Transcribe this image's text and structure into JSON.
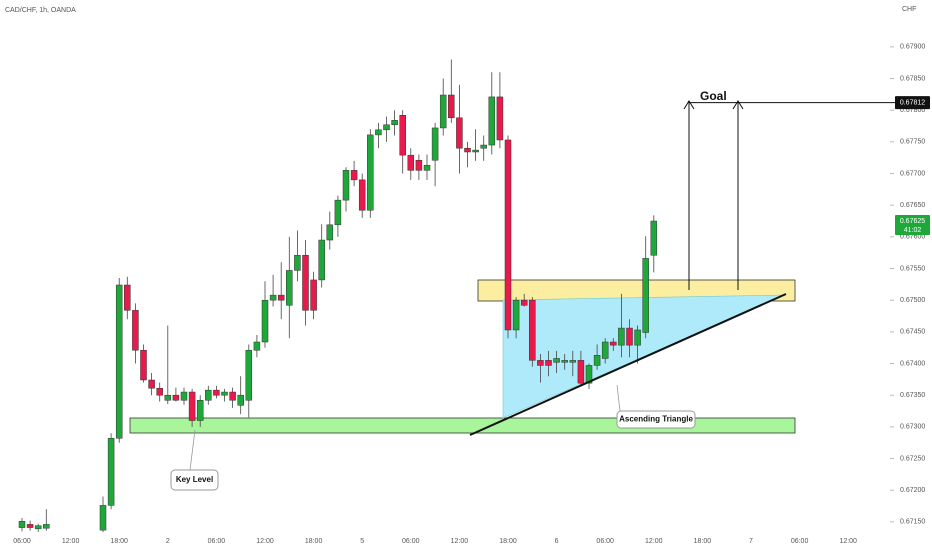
{
  "chart_data": {
    "type": "candlestick",
    "title": "CAD/CHF, 1h, OANDA",
    "currency": "CHF",
    "up_color": "#1fa83a",
    "down_color": "#e8194b",
    "categories": [
      "06:00",
      null,
      null,
      null,
      null,
      null,
      "12:00",
      null,
      null,
      null,
      null,
      null,
      "18:00",
      null,
      null,
      null,
      null,
      null,
      "2",
      null,
      null,
      null,
      null,
      null,
      "06:00",
      null,
      null,
      null,
      null,
      null,
      "12:00",
      null,
      null,
      null,
      null,
      null,
      "18:00",
      null,
      null,
      null,
      null,
      null,
      "5",
      null,
      null,
      null,
      null,
      null,
      "06:00",
      null,
      null,
      null,
      null,
      null,
      "12:00",
      null,
      null,
      null,
      null,
      null,
      "18:00",
      null,
      null,
      null,
      null,
      null,
      "6",
      null,
      null,
      null,
      null,
      null,
      "06:00",
      null,
      null,
      null,
      null,
      null,
      "12:00",
      null,
      null,
      null,
      null,
      null,
      "18:00",
      null,
      null,
      null,
      null,
      null,
      "7",
      null,
      null,
      null,
      null,
      null,
      "06:00",
      null,
      null,
      null,
      null,
      null,
      "12:00",
      null,
      null,
      null,
      null,
      null
    ],
    "open": [
      0.67141,
      0.67146,
      0.67139,
      0.6714,
      null,
      null,
      null,
      null,
      null,
      null,
      0.67137,
      0.67176,
      0.67282,
      0.67524,
      0.67484,
      0.67421,
      0.67374,
      0.67361,
      0.67342,
      0.6735,
      0.67342,
      0.67355,
      0.6731,
      0.67342,
      0.67358,
      0.6735,
      0.67355,
      0.67334,
      0.67342,
      0.67421,
      0.67434,
      0.675,
      0.67508,
      0.67492,
      0.67547,
      0.67571,
      0.67532,
      0.67532,
      0.67595,
      0.67619,
      0.67658,
      0.67705,
      0.6769,
      0.67642,
      0.67761,
      0.67769,
      0.67777,
      0.67792,
      0.67729,
      0.67721,
      0.67705,
      0.67721,
      0.67772,
      0.67824,
      0.67788,
      0.6774,
      0.67734,
      0.6774,
      0.67745,
      0.67821,
      0.67753,
      0.67453,
      0.675,
      0.675,
      0.67405,
      0.67405,
      0.67402,
      0.67402,
      0.67402,
      0.67405,
      0.67369,
      0.67397,
      0.67408,
      0.67434,
      0.67429,
      0.67456,
      0.67429,
      0.67449,
      0.67571,
      null,
      null,
      null,
      null,
      null,
      null,
      null,
      null,
      null,
      null,
      null,
      null,
      null,
      null,
      null,
      null,
      null,
      null,
      null,
      null,
      null,
      null,
      null,
      null,
      null,
      null,
      null,
      null,
      null
    ],
    "high": [
      0.67156,
      0.67152,
      0.67147,
      0.6717,
      null,
      null,
      null,
      null,
      null,
      null,
      0.6719,
      0.6729,
      0.67535,
      0.67537,
      0.67495,
      0.6743,
      0.67385,
      0.6737,
      0.6746,
      0.67362,
      0.67362,
      0.6736,
      0.6735,
      0.67365,
      0.67365,
      0.6736,
      0.67362,
      0.6738,
      0.6743,
      0.67445,
      0.6753,
      0.6754,
      0.6756,
      0.676,
      0.6761,
      0.67595,
      0.67545,
      0.6762,
      0.6764,
      0.67665,
      0.6771,
      0.6772,
      0.677,
      0.6777,
      0.6778,
      0.6779,
      0.678,
      0.678,
      0.6774,
      0.6773,
      0.6773,
      0.6778,
      0.6785,
      0.6788,
      0.6784,
      0.6775,
      0.6777,
      0.6776,
      0.6786,
      0.6786,
      0.6776,
      0.67505,
      0.6751,
      0.67505,
      0.67415,
      0.6742,
      0.6742,
      0.67415,
      0.6742,
      0.6742,
      0.674,
      0.6743,
      0.6744,
      0.6744,
      0.6751,
      0.6747,
      0.6746,
      0.67601,
      0.67634,
      null,
      null,
      null,
      null,
      null,
      null,
      null,
      null,
      null,
      null,
      null,
      null,
      null,
      null,
      null,
      null,
      null,
      null,
      null,
      null,
      null,
      null,
      null,
      null,
      null,
      null,
      null,
      null,
      null
    ],
    "low": [
      0.67135,
      0.67136,
      0.67134,
      0.67136,
      null,
      null,
      null,
      null,
      null,
      null,
      0.67134,
      0.6717,
      0.67275,
      0.6747,
      0.674,
      0.6737,
      0.6735,
      0.6734,
      0.67336,
      0.6734,
      0.67335,
      0.673,
      0.673,
      0.67335,
      0.67345,
      0.6734,
      0.6733,
      0.6732,
      0.67315,
      0.6741,
      0.67425,
      0.6749,
      0.6747,
      0.6744,
      0.6753,
      0.6746,
      0.6747,
      0.6752,
      0.6758,
      0.676,
      0.6764,
      0.6768,
      0.6763,
      0.6763,
      0.6774,
      0.6775,
      0.6776,
      0.677,
      0.6769,
      0.6769,
      0.6769,
      0.6768,
      0.6776,
      0.6778,
      0.677,
      0.6771,
      0.6772,
      0.6772,
      0.6773,
      0.6774,
      0.6744,
      0.6744,
      0.6749,
      0.67395,
      0.6737,
      0.6738,
      0.67385,
      0.6739,
      0.6738,
      0.67365,
      0.6736,
      0.6739,
      0.674,
      0.6742,
      0.6741,
      0.6741,
      0.674,
      0.6744,
      0.67544,
      null,
      null,
      null,
      null,
      null,
      null,
      null,
      null,
      null,
      null,
      null,
      null,
      null,
      null,
      null,
      null,
      null,
      null,
      null,
      null,
      null,
      null,
      null,
      null,
      null,
      null,
      null,
      null,
      null
    ],
    "close": [
      0.67151,
      0.67141,
      0.67144,
      0.67146,
      null,
      null,
      null,
      null,
      null,
      null,
      0.67176,
      0.67282,
      0.67524,
      0.67484,
      0.67421,
      0.67374,
      0.67361,
      0.6735,
      0.6735,
      0.67342,
      0.67355,
      0.6731,
      0.67342,
      0.67358,
      0.6735,
      0.67355,
      0.67342,
      0.6735,
      0.67421,
      0.67434,
      0.675,
      0.67508,
      0.675,
      0.67547,
      0.67571,
      0.67484,
      0.67484,
      0.67595,
      0.67619,
      0.67658,
      0.67705,
      0.6769,
      0.67642,
      0.67761,
      0.67769,
      0.67777,
      0.67784,
      0.67729,
      0.67705,
      0.67705,
      0.67713,
      0.67772,
      0.67824,
      0.67788,
      0.6774,
      0.67734,
      0.67737,
      0.67745,
      0.67821,
      0.67753,
      0.67453,
      0.675,
      0.67492,
      0.67405,
      0.67397,
      0.67397,
      0.67408,
      0.67405,
      0.67405,
      0.67369,
      0.67397,
      0.67413,
      0.67434,
      0.67429,
      0.67456,
      0.67429,
      0.67453,
      0.67566,
      0.67625,
      null,
      null,
      null,
      null,
      null,
      null,
      null,
      null,
      null,
      null,
      null,
      null,
      null,
      null,
      null,
      null,
      null,
      null,
      null,
      null,
      null,
      null,
      null,
      null,
      null,
      null,
      null,
      null,
      null
    ],
    "ylim": [
      0.67134,
      0.67974
    ],
    "yticks": [
      {
        "value": 0.6715,
        "label": "0.67150"
      },
      {
        "value": 0.672,
        "label": "0.67200"
      },
      {
        "value": 0.6725,
        "label": "0.67250"
      },
      {
        "value": 0.673,
        "label": "0.67300"
      },
      {
        "value": 0.6735,
        "label": "0.67350"
      },
      {
        "value": 0.674,
        "label": "0.67400"
      },
      {
        "value": 0.6745,
        "label": "0.67450"
      },
      {
        "value": 0.675,
        "label": "0.67500"
      },
      {
        "value": 0.6755,
        "label": "0.67550"
      },
      {
        "value": 0.676,
        "label": "0.67600"
      },
      {
        "value": 0.6765,
        "label": "0.67650"
      },
      {
        "value": 0.677,
        "label": "0.67700"
      },
      {
        "value": 0.6775,
        "label": "0.67750"
      },
      {
        "value": 0.678,
        "label": "0.67800"
      },
      {
        "value": 0.6785,
        "label": "0.67850"
      },
      {
        "value": 0.679,
        "label": "0.67900"
      }
    ],
    "goal_price": {
      "value": 0.67812,
      "label": "0.67812"
    },
    "last_price": {
      "value": 0.67625,
      "label": "0.67625",
      "countdown": "41:02"
    },
    "annotations": {
      "goal": "Goal",
      "key_level": "Key Level",
      "triangle": "Ascending Triangle"
    }
  }
}
